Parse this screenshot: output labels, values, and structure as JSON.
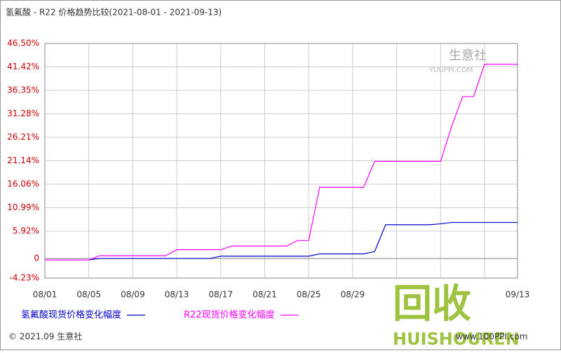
{
  "chart_data": {
    "type": "line",
    "title": "氢氟酸 - R22 价格趋势比较(2021-08-01 - 2021-09-13)",
    "categories": [
      "08/01",
      null,
      null,
      null,
      "08/05",
      null,
      null,
      null,
      "08/09",
      null,
      null,
      null,
      "08/13",
      null,
      null,
      null,
      "08/17",
      null,
      null,
      null,
      "08/21",
      null,
      null,
      null,
      "08/25",
      null,
      null,
      null,
      "08/29",
      null,
      null,
      null,
      null,
      null,
      null,
      null,
      null,
      null,
      null,
      null,
      null,
      null,
      null,
      "09/13"
    ],
    "series": [
      {
        "name": "氢氟酸现货价格变化幅度",
        "color": "#0000cc",
        "values": [
          -0.3,
          -0.3,
          -0.3,
          -0.3,
          -0.3,
          0,
          0,
          0,
          0,
          0,
          0,
          0,
          0,
          0,
          0,
          0,
          0.5,
          0.5,
          0.5,
          0.5,
          0.5,
          0.5,
          0.5,
          0.5,
          0.5,
          1.0,
          1.0,
          1.0,
          1.0,
          1.0,
          1.5,
          7.3,
          7.3,
          7.3,
          7.3,
          7.3,
          7.5,
          7.8,
          7.8,
          7.8,
          7.8,
          7.8,
          7.8,
          7.8
        ]
      },
      {
        "name": "R22现货价格变化幅度",
        "color": "#ff00ff",
        "values": [
          -0.3,
          -0.3,
          -0.3,
          -0.3,
          -0.3,
          0.6,
          0.6,
          0.6,
          0.6,
          0.6,
          0.6,
          0.6,
          1.9,
          1.9,
          1.9,
          1.9,
          1.9,
          2.7,
          2.7,
          2.7,
          2.7,
          2.7,
          2.7,
          3.9,
          3.9,
          15.4,
          15.4,
          15.4,
          15.4,
          15.4,
          21.0,
          21.0,
          21.0,
          21.0,
          21.0,
          21.0,
          21.0,
          28.5,
          35.0,
          35.0,
          42.0,
          42.0,
          42.0,
          42.0
        ]
      }
    ],
    "ylim": [
      -4.23,
      46.5
    ],
    "yticks": [
      {
        "value": -4.23,
        "label": "-4.23%"
      },
      0,
      {
        "value": 5.92,
        "label": "5.92%"
      },
      {
        "value": 10.99,
        "label": "10.99%"
      },
      {
        "value": 16.06,
        "label": "16.06%"
      },
      {
        "value": 21.14,
        "label": "21.14%"
      },
      {
        "value": 26.21,
        "label": "26.21%"
      },
      {
        "value": 31.28,
        "label": "31.28%"
      },
      {
        "value": 36.35,
        "label": "36.35%"
      },
      {
        "value": 41.42,
        "label": "41.42%"
      },
      {
        "value": 46.5,
        "label": "46.50%"
      }
    ],
    "grid": true,
    "footer": "© 2021.09 生意社",
    "source": "www.100PPI.com",
    "watermarks": [
      "生意社",
      "YUUPPI.COM",
      "回收",
      "HUISHOUREN"
    ]
  }
}
